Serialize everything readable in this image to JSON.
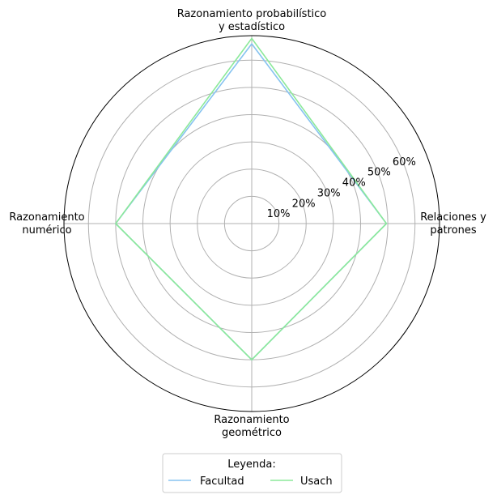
{
  "chart_data": {
    "type": "radar",
    "categories": [
      [
        "Relaciones y",
        "patrones"
      ],
      [
        "Razonamiento probabilístico",
        "y estadístico"
      ],
      [
        "Razonamiento",
        "numérico"
      ],
      [
        "Razonamiento",
        "geométrico"
      ]
    ],
    "radial_ticks": [
      "10%",
      "20%",
      "30%",
      "40%",
      "50%",
      "60%"
    ],
    "radial_tick_values": [
      10,
      20,
      30,
      40,
      50,
      60
    ],
    "rmax": 69,
    "series": [
      {
        "name": "Facultad",
        "values": [
          49.5,
          66,
          50,
          50
        ],
        "color": "#87c3f0"
      },
      {
        "name": "Usach",
        "values": [
          49.5,
          68,
          50,
          50
        ],
        "color": "#8ce99a"
      }
    ],
    "legend": {
      "title": "Leyenda:",
      "placement": "bottom-center"
    }
  }
}
